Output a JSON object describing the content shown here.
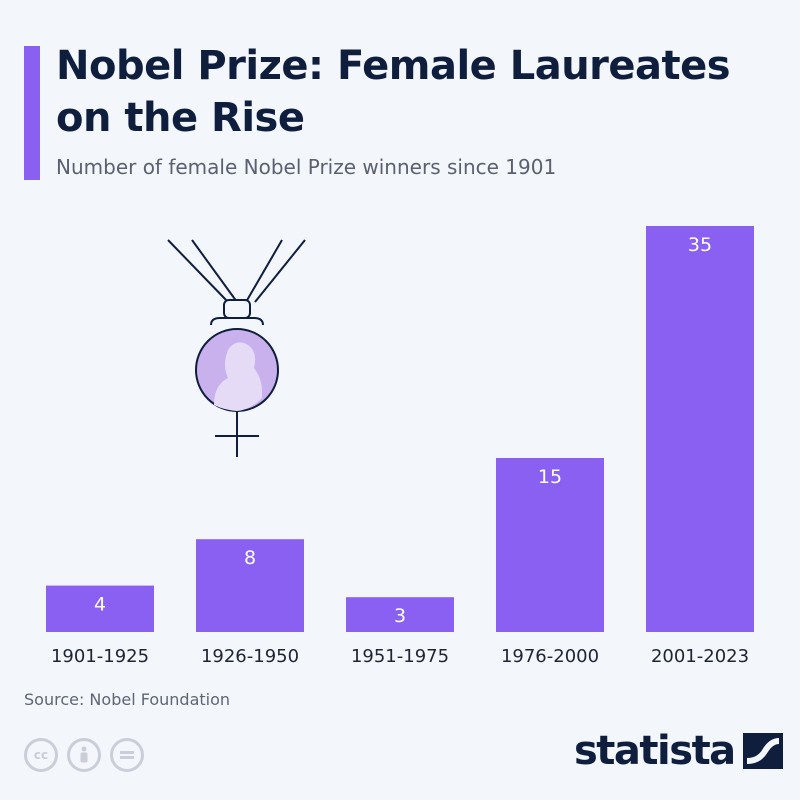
{
  "header": {
    "title": "Nobel Prize: Female Laureates on the Rise",
    "subtitle": "Number of female Nobel Prize winners since 1901"
  },
  "footer": {
    "source": "Source: Nobel Foundation",
    "brand": "statista",
    "license_icons": [
      "cc-icon",
      "attribution-icon",
      "no-derivatives-icon"
    ]
  },
  "colors": {
    "bar": "#8a60f2",
    "title": "#0f1e3c",
    "medal": "#c9b1ee",
    "background": "#f3f6fa"
  },
  "chart_data": {
    "type": "bar",
    "title": "Nobel Prize: Female Laureates on the Rise",
    "subtitle": "Number of female Nobel Prize winners since 1901",
    "categories": [
      "1901-1925",
      "1926-1950",
      "1951-1975",
      "1976-2000",
      "2001-2023"
    ],
    "values": [
      4,
      8,
      3,
      15,
      35
    ],
    "xlabel": "",
    "ylabel": "",
    "ylim": [
      0,
      35
    ],
    "grid": false,
    "legend": "none"
  }
}
